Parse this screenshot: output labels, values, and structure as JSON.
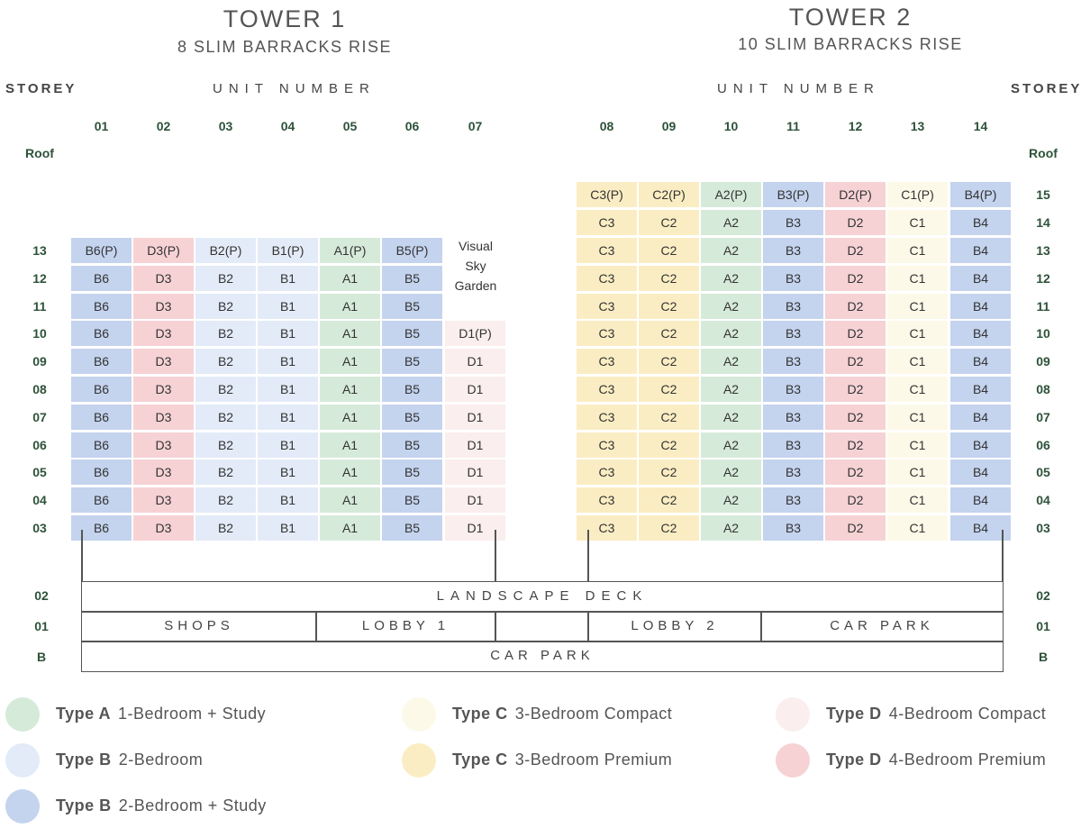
{
  "tower1": {
    "title": "TOWER 1",
    "address": "8 SLIM BARRACKS RISE"
  },
  "tower2": {
    "title": "TOWER 2",
    "address": "10 SLIM BARRACKS RISE"
  },
  "headers": {
    "storey": "STOREY",
    "unit_number": "UNIT NUMBER"
  },
  "colors": {
    "A_study": "#d6ead9",
    "B": "#e3ebf8",
    "B_study": "#c4d3ee",
    "C_compact": "#fdf9e8",
    "C_premium": "#fbedc3",
    "D_compact": "#fbeeee",
    "D_premium": "#f6d2d4"
  },
  "tower1_units": [
    "01",
    "02",
    "03",
    "04",
    "05",
    "06",
    "07"
  ],
  "tower2_units": [
    "08",
    "09",
    "10",
    "11",
    "12",
    "13",
    "14"
  ],
  "roof_label": "Roof",
  "tower1_rows": [
    {
      "storey": "13",
      "cells": [
        "B6(P)",
        "D3(P)",
        "B2(P)",
        "B1(P)",
        "A1(P)",
        "B5(P)"
      ]
    },
    {
      "storey": "12",
      "cells": [
        "B6",
        "D3",
        "B2",
        "B1",
        "A1",
        "B5"
      ]
    },
    {
      "storey": "11",
      "cells": [
        "B6",
        "D3",
        "B2",
        "B1",
        "A1",
        "B5"
      ]
    },
    {
      "storey": "10",
      "cells": [
        "B6",
        "D3",
        "B2",
        "B1",
        "A1",
        "B5",
        "D1(P)"
      ]
    },
    {
      "storey": "09",
      "cells": [
        "B6",
        "D3",
        "B2",
        "B1",
        "A1",
        "B5",
        "D1"
      ]
    },
    {
      "storey": "08",
      "cells": [
        "B6",
        "D3",
        "B2",
        "B1",
        "A1",
        "B5",
        "D1"
      ]
    },
    {
      "storey": "07",
      "cells": [
        "B6",
        "D3",
        "B2",
        "B1",
        "A1",
        "B5",
        "D1"
      ]
    },
    {
      "storey": "06",
      "cells": [
        "B6",
        "D3",
        "B2",
        "B1",
        "A1",
        "B5",
        "D1"
      ]
    },
    {
      "storey": "05",
      "cells": [
        "B6",
        "D3",
        "B2",
        "B1",
        "A1",
        "B5",
        "D1"
      ]
    },
    {
      "storey": "04",
      "cells": [
        "B6",
        "D3",
        "B2",
        "B1",
        "A1",
        "B5",
        "D1"
      ]
    },
    {
      "storey": "03",
      "cells": [
        "B6",
        "D3",
        "B2",
        "B1",
        "A1",
        "B5",
        "D1"
      ]
    }
  ],
  "tower2_rows": [
    {
      "storey": "15",
      "cells": [
        "C3(P)",
        "C2(P)",
        "A2(P)",
        "B3(P)",
        "D2(P)",
        "C1(P)",
        "B4(P)"
      ]
    },
    {
      "storey": "14",
      "cells": [
        "C3",
        "C2",
        "A2",
        "B3",
        "D2",
        "C1",
        "B4"
      ]
    },
    {
      "storey": "13",
      "cells": [
        "C3",
        "C2",
        "A2",
        "B3",
        "D2",
        "C1",
        "B4"
      ]
    },
    {
      "storey": "12",
      "cells": [
        "C3",
        "C2",
        "A2",
        "B3",
        "D2",
        "C1",
        "B4"
      ]
    },
    {
      "storey": "11",
      "cells": [
        "C3",
        "C2",
        "A2",
        "B3",
        "D2",
        "C1",
        "B4"
      ]
    },
    {
      "storey": "10",
      "cells": [
        "C3",
        "C2",
        "A2",
        "B3",
        "D2",
        "C1",
        "B4"
      ]
    },
    {
      "storey": "09",
      "cells": [
        "C3",
        "C2",
        "A2",
        "B3",
        "D2",
        "C1",
        "B4"
      ]
    },
    {
      "storey": "08",
      "cells": [
        "C3",
        "C2",
        "A2",
        "B3",
        "D2",
        "C1",
        "B4"
      ]
    },
    {
      "storey": "07",
      "cells": [
        "C3",
        "C2",
        "A2",
        "B3",
        "D2",
        "C1",
        "B4"
      ]
    },
    {
      "storey": "06",
      "cells": [
        "C3",
        "C2",
        "A2",
        "B3",
        "D2",
        "C1",
        "B4"
      ]
    },
    {
      "storey": "05",
      "cells": [
        "C3",
        "C2",
        "A2",
        "B3",
        "D2",
        "C1",
        "B4"
      ]
    },
    {
      "storey": "04",
      "cells": [
        "C3",
        "C2",
        "A2",
        "B3",
        "D2",
        "C1",
        "B4"
      ]
    },
    {
      "storey": "03",
      "cells": [
        "C3",
        "C2",
        "A2",
        "B3",
        "D2",
        "C1",
        "B4"
      ]
    }
  ],
  "sky_garden": [
    "Visual",
    "Sky",
    "Garden"
  ],
  "podium": {
    "landscape_deck": "LANDSCAPE DECK",
    "shops": "SHOPS",
    "lobby1": "LOBBY 1",
    "lobby2": "LOBBY 2",
    "car_park_01": "CAR PARK",
    "car_park_b": "CAR PARK",
    "storey_02": "02",
    "storey_01": "01",
    "storey_b": "B"
  },
  "legend": [
    {
      "type": "Type A",
      "desc": "1-Bedroom + Study",
      "color": "#d6ead9"
    },
    {
      "type": "Type C",
      "desc": "3-Bedroom Compact",
      "color": "#fdf9e8"
    },
    {
      "type": "Type D",
      "desc": "4-Bedroom Compact",
      "color": "#fbeeee"
    },
    {
      "type": "Type B",
      "desc": "2-Bedroom",
      "color": "#e3ebf8"
    },
    {
      "type": "Type C",
      "desc": "3-Bedroom Premium",
      "color": "#fbedc3"
    },
    {
      "type": "Type D",
      "desc": "4-Bedroom Premium",
      "color": "#f6d2d4"
    },
    {
      "type": "Type B",
      "desc": "2-Bedroom + Study",
      "color": "#c4d3ee"
    }
  ]
}
